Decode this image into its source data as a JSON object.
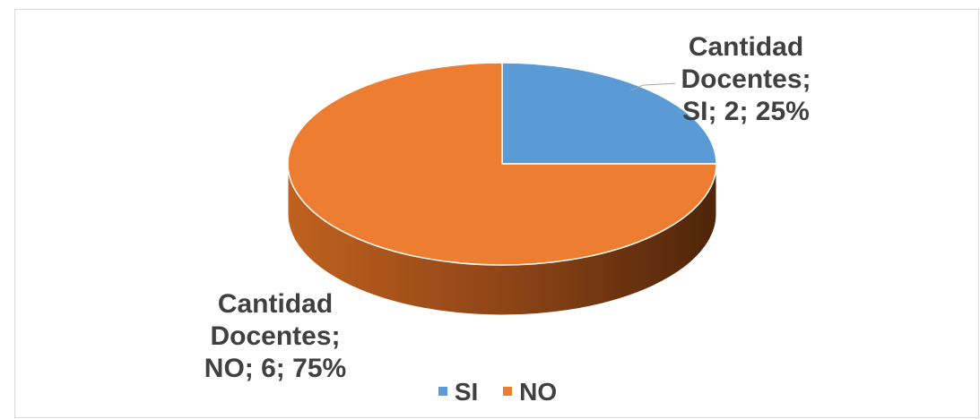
{
  "chart_data": {
    "type": "pie",
    "title": "",
    "series_name": "Cantidad Docentes",
    "categories": [
      "SI",
      "NO"
    ],
    "values": [
      2,
      6
    ],
    "percentages": [
      "25%",
      "75%"
    ],
    "data_labels": [
      "Cantidad Docentes;\nSI; 2; 25%",
      "Cantidad Docentes;\nNO; 6; 75%"
    ],
    "colors": [
      "#5b9bd5",
      "#ed7d31"
    ],
    "legend": {
      "position": "bottom",
      "entries": [
        "SI",
        "NO"
      ]
    },
    "three_d": true
  }
}
